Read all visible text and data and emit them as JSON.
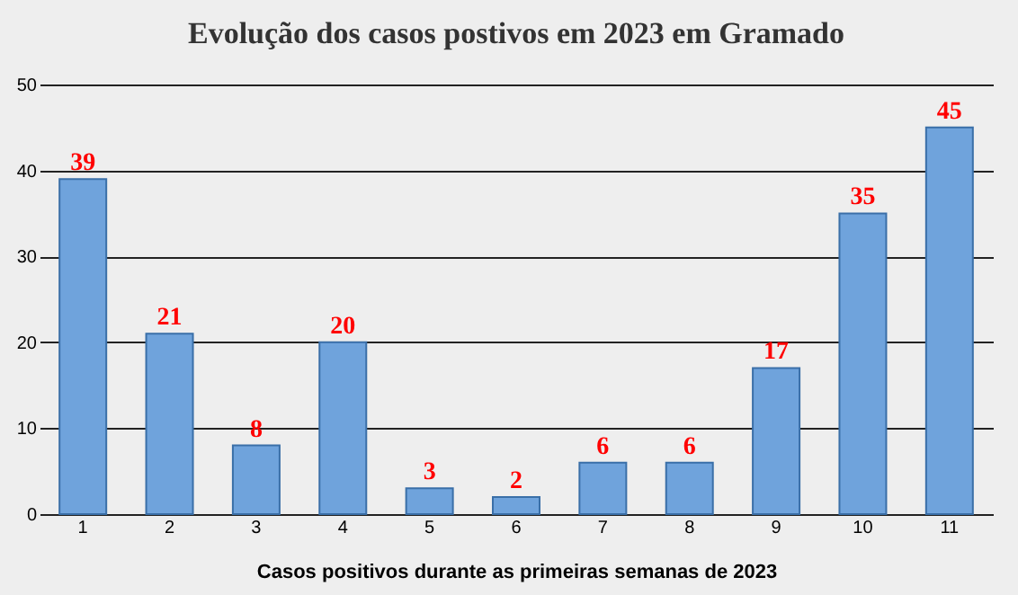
{
  "chart_data": {
    "type": "bar",
    "title": "Evolução dos casos postivos em 2023 em Gramado",
    "xlabel": "Casos positivos durante as primeiras semanas de 2023",
    "categories": [
      "1",
      "2",
      "3",
      "4",
      "5",
      "6",
      "7",
      "8",
      "9",
      "10",
      "11"
    ],
    "values": [
      39,
      21,
      8,
      20,
      3,
      2,
      6,
      6,
      17,
      35,
      45
    ],
    "color": "#6fa3dc",
    "ylim": [
      0,
      50
    ],
    "yticks": [
      0,
      10,
      20,
      30,
      40,
      50
    ],
    "grid": "y",
    "data_labels": true
  }
}
